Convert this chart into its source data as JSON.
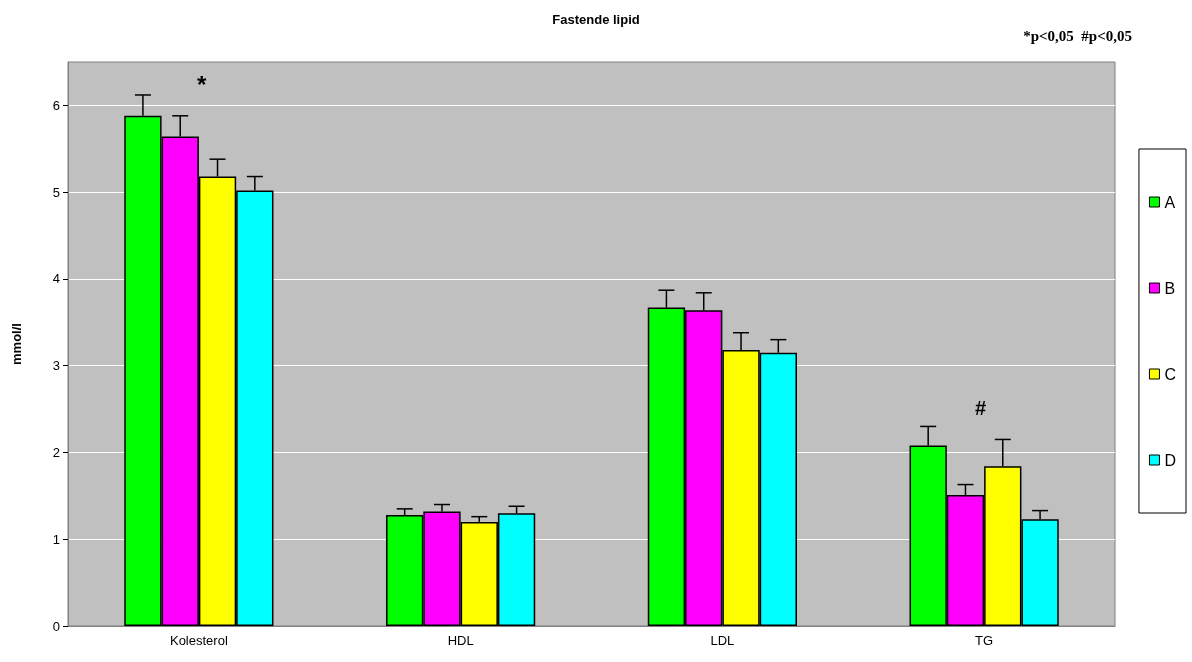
{
  "chart_data": {
    "type": "bar",
    "title": "Fastende lipid",
    "ylabel": "mmol/l",
    "categories": [
      "Kolesterol",
      "HDL",
      "LDL",
      "TG"
    ],
    "series": [
      {
        "name": "A",
        "color": "#00ff00",
        "values": [
          5.88,
          1.28,
          3.67,
          2.08
        ],
        "errors": [
          0.24,
          0.07,
          0.2,
          0.22
        ]
      },
      {
        "name": "B",
        "color": "#ff00ff",
        "values": [
          5.64,
          1.32,
          3.64,
          1.51
        ],
        "errors": [
          0.24,
          0.08,
          0.2,
          0.12
        ]
      },
      {
        "name": "C",
        "color": "#ffff00",
        "values": [
          5.18,
          1.2,
          3.18,
          1.84
        ],
        "errors": [
          0.2,
          0.06,
          0.2,
          0.31
        ]
      },
      {
        "name": "D",
        "color": "#00ffff",
        "values": [
          5.02,
          1.3,
          3.15,
          1.23
        ],
        "errors": [
          0.16,
          0.08,
          0.15,
          0.1
        ]
      }
    ],
    "ylim": [
      0,
      6.5
    ],
    "yticks": [
      0,
      1,
      2,
      3,
      4,
      5,
      6
    ],
    "grid": "y",
    "legend": "right",
    "annotations": [
      "*",
      "#",
      "*p<0,05  #p<0,05"
    ]
  }
}
